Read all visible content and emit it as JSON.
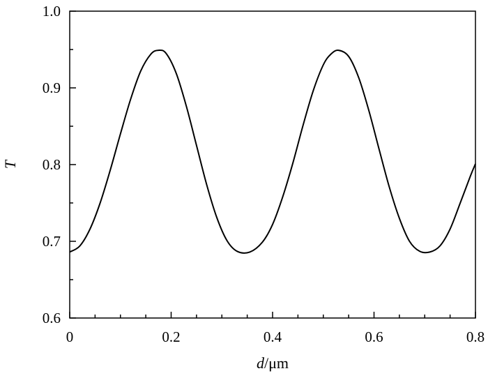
{
  "chart_data": {
    "type": "line",
    "title": "",
    "xlabel_var": "d",
    "xlabel_unit": "/μm",
    "ylabel": "T",
    "xlim": [
      0,
      0.8
    ],
    "ylim": [
      0.6,
      1.0
    ],
    "x_ticks": [
      0,
      0.2,
      0.4,
      0.6,
      0.8
    ],
    "x_tick_labels": [
      "0",
      "0.2",
      "0.4",
      "0.6",
      "0.8"
    ],
    "y_ticks": [
      0.6,
      0.7,
      0.8,
      0.9,
      1.0
    ],
    "y_tick_labels": [
      "0.6",
      "0.7",
      "0.8",
      "0.9",
      "1.0"
    ],
    "grid": false,
    "legend": "none",
    "series": [
      {
        "color": "#000000",
        "x": [
          0,
          0.02,
          0.04,
          0.06,
          0.08,
          0.1,
          0.12,
          0.14,
          0.16,
          0.175,
          0.19,
          0.21,
          0.23,
          0.25,
          0.27,
          0.29,
          0.31,
          0.33,
          0.355,
          0.38,
          0.4,
          0.42,
          0.44,
          0.46,
          0.48,
          0.5,
          0.515,
          0.53,
          0.55,
          0.57,
          0.59,
          0.61,
          0.63,
          0.65,
          0.67,
          0.69,
          0.71,
          0.73,
          0.75,
          0.77,
          0.79,
          0.8
        ],
        "y": [
          0.686,
          0.694,
          0.716,
          0.75,
          0.793,
          0.84,
          0.885,
          0.922,
          0.944,
          0.949,
          0.945,
          0.919,
          0.876,
          0.825,
          0.774,
          0.731,
          0.701,
          0.687,
          0.686,
          0.699,
          0.722,
          0.758,
          0.802,
          0.851,
          0.896,
          0.93,
          0.944,
          0.949,
          0.941,
          0.913,
          0.87,
          0.82,
          0.771,
          0.73,
          0.7,
          0.687,
          0.686,
          0.694,
          0.716,
          0.75,
          0.785,
          0.801
        ]
      }
    ]
  }
}
